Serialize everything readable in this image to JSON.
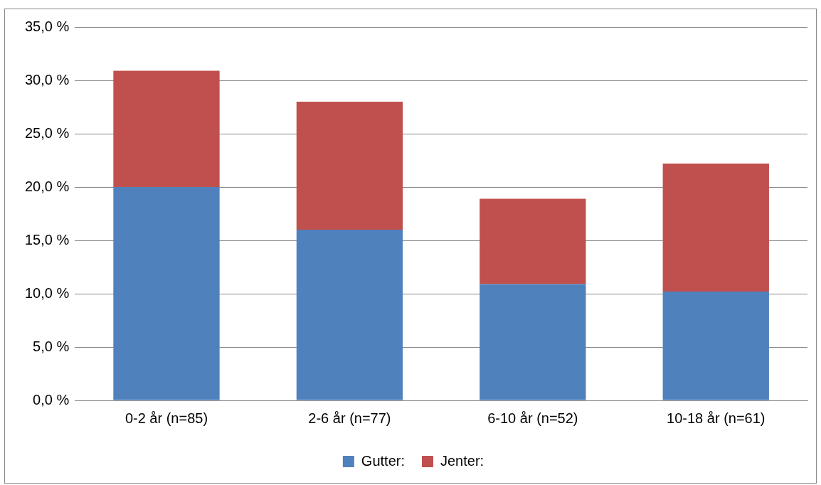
{
  "chart_data": {
    "type": "bar",
    "stacked": true,
    "categories": [
      "0-2 år (n=85)",
      "2-6 år (n=77)",
      "6-10 år (n=52)",
      "10-18 år (n=61)"
    ],
    "series": [
      {
        "name": "Gutter:",
        "color": "#4f81bd",
        "values": [
          20.0,
          16.0,
          10.9,
          10.2
        ]
      },
      {
        "name": "Jenter:",
        "color": "#c0504d",
        "values": [
          10.9,
          12.0,
          8.0,
          12.0
        ]
      }
    ],
    "ylim": [
      0,
      35
    ],
    "yticks": [
      {
        "value": 0,
        "label": "0,0 %"
      },
      {
        "value": 5,
        "label": "5,0 %"
      },
      {
        "value": 10,
        "label": "10,0 %"
      },
      {
        "value": 15,
        "label": "15,0 %"
      },
      {
        "value": 20,
        "label": "20,0 %"
      },
      {
        "value": 25,
        "label": "25,0 %"
      },
      {
        "value": 30,
        "label": "30,0 %"
      },
      {
        "value": 35,
        "label": "35,0 %"
      }
    ],
    "grid": "y",
    "legend": "bottom"
  }
}
